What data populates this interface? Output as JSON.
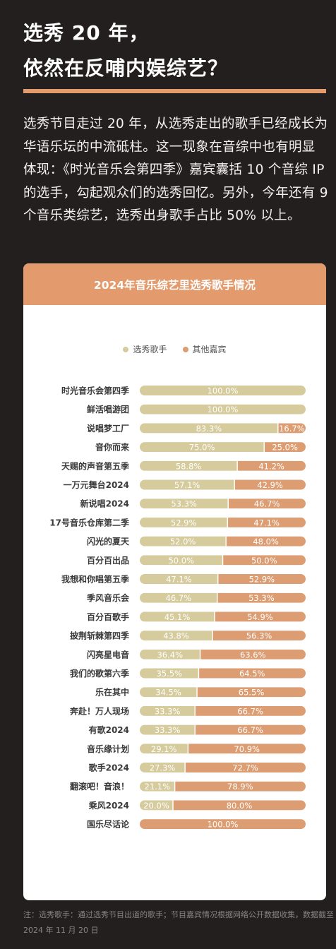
{
  "headline": {
    "line1": "选秀 20 年，",
    "line2": "依然在反哺内娱综艺？"
  },
  "intro": "选秀节目走过 20 年，从选秀走出的歌手已经成长为华语乐坛的中流砥柱。这一现象在音综中也有明显体现：《时光音乐会第四季》嘉宾囊括 10 个音综 IP 的选手，勾起观众们的选秀回忆。另外，今年还有 9 个音乐类综艺，选秀出身歌手占比 50% 以上。",
  "footnote": "注：选秀歌手：通过选秀节目出道的歌手；节目嘉宾情况根据网络公开数据收集，数据截至 2024 年 11 月 20 日",
  "colors": {
    "background": "#231f1f",
    "accent": "#e39a6c",
    "series_a": "#d6cb9c",
    "series_b": "#dd9d72"
  },
  "chart_data": {
    "type": "bar",
    "orientation": "horizontal",
    "stacked": true,
    "title": "2024年音乐综艺里选秀歌手情况",
    "legend_position": "top",
    "value_unit": "%",
    "categories": [
      "时光音乐会第四季",
      "鲜活唱游团",
      "说唱梦工厂",
      "音你而来",
      "天赐的声音第五季",
      "一万元舞台2024",
      "新说唱2024",
      "17号音乐仓库第二季",
      "闪光的夏天",
      "百分百出品",
      "我想和你唱第五季",
      "季风音乐会",
      "百分百歌手",
      "披荆斩棘第四季",
      "闪亮星电音",
      "我们的歌第六季",
      "乐在其中",
      "奔赴！万人现场",
      "有歌2024",
      "音乐缘计划",
      "歌手2024",
      "翻滚吧！音浪！",
      "乘风2024",
      "国乐尽话论"
    ],
    "series": [
      {
        "name": "选秀歌手",
        "color": "#d6cb9c",
        "values": [
          100.0,
          100.0,
          83.3,
          75.0,
          58.8,
          57.1,
          53.3,
          52.9,
          52.0,
          50.0,
          47.1,
          46.7,
          45.1,
          43.8,
          36.4,
          35.5,
          34.5,
          33.3,
          33.3,
          29.1,
          27.3,
          21.1,
          20.0,
          0.0
        ],
        "labels": [
          "100.0%",
          "100.0%",
          "83.3%",
          "75.0%",
          "58.8%",
          "57.1%",
          "53.3%",
          "52.9%",
          "52.0%",
          "50.0%",
          "47.1%",
          "46.7%",
          "45.1%",
          "43.8%",
          "36.4%",
          "35.5%",
          "34.5%",
          "33.3%",
          "33.3%",
          "29.1%",
          "27.3%",
          "21.1%",
          "20.0%",
          ""
        ]
      },
      {
        "name": "其他嘉宾",
        "color": "#dd9d72",
        "values": [
          0.0,
          0.0,
          16.7,
          25.0,
          41.2,
          42.9,
          46.7,
          47.1,
          48.0,
          50.0,
          52.9,
          53.3,
          54.9,
          56.3,
          63.6,
          64.5,
          65.5,
          66.7,
          66.7,
          70.9,
          72.7,
          78.9,
          80.0,
          100.0
        ],
        "labels": [
          "",
          "",
          "16.7%",
          "25.0%",
          "41.2%",
          "42.9%",
          "46.7%",
          "47.1%",
          "48.0%",
          "50.0%",
          "52.9%",
          "53.3%",
          "54.9%",
          "56.3%",
          "63.6%",
          "64.5%",
          "65.5%",
          "66.7%",
          "66.7%",
          "70.9%",
          "72.7%",
          "78.9%",
          "80.0%",
          "100.0%"
        ]
      }
    ]
  }
}
